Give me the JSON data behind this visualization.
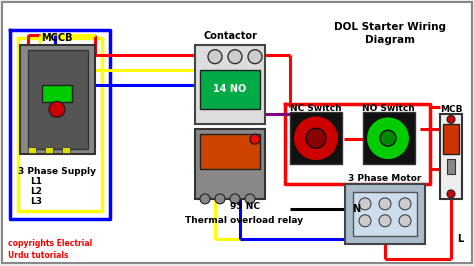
{
  "title": "DOL Starter Wiring\nDiagram",
  "bg_color": "#f0f0f0",
  "labels": {
    "mccb": "MCCB",
    "contactor": "Contactor",
    "nc_switch": "NC Switch",
    "no_switch": "NO Switch",
    "three_phase_supply": "3 Phase Supply",
    "l1": "L1",
    "l2": "L2",
    "l3": "L3",
    "thermal_relay": "Thermal overload relay",
    "copyright": "copyrights Electrial\nUrdu tutorials",
    "no_label": "14 NO",
    "nc_label": "95 NC",
    "n_label": "N",
    "l_label": "L",
    "mcb": "MCB",
    "motor": "3 Phase Motor"
  },
  "colors": {
    "red": "#ff0000",
    "blue": "#0000ff",
    "yellow": "#ffff00",
    "green": "#00aa00",
    "purple": "#800080",
    "black": "#000000",
    "white": "#ffffff",
    "gray": "#888888",
    "dark_gray": "#444444",
    "copyright_color": "#ff0000",
    "bg_box": "#ffffff"
  }
}
